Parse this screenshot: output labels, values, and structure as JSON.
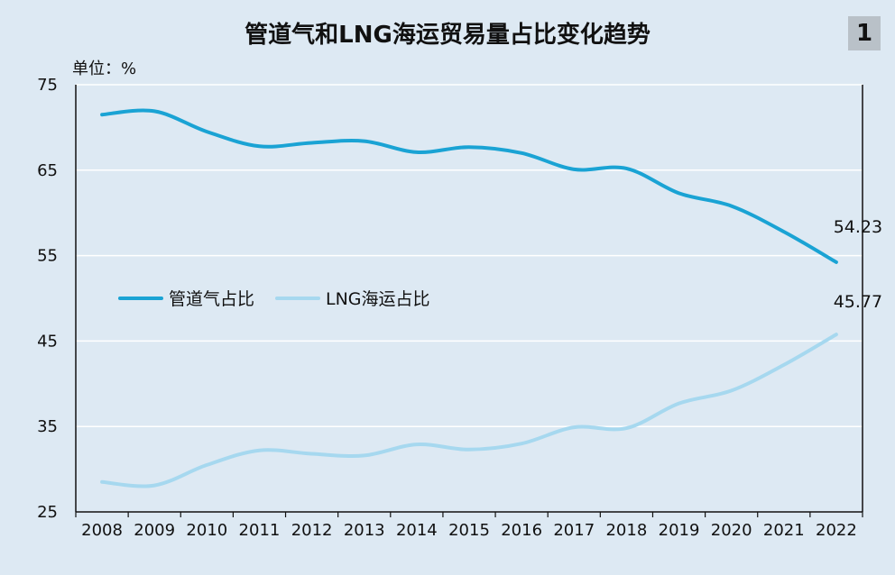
{
  "figure_number": "1",
  "chart_data": {
    "type": "line",
    "title": "管道气和LNG海运贸易量占比变化趋势",
    "unit_label": "单位：%",
    "xlabel": "",
    "ylabel": "",
    "categories": [
      "2008",
      "2009",
      "2010",
      "2011",
      "2012",
      "2013",
      "2014",
      "2015",
      "2016",
      "2017",
      "2018",
      "2019",
      "2020",
      "2021",
      "2022"
    ],
    "ylim": [
      25,
      75
    ],
    "yticks": [
      25,
      35,
      45,
      55,
      65,
      75
    ],
    "grid": true,
    "legend_position": "middle-left",
    "series": [
      {
        "name": "管道气占比",
        "color": "#1aa3d4",
        "values": [
          71.5,
          71.9,
          69.5,
          67.8,
          68.2,
          68.4,
          67.1,
          67.7,
          67.0,
          65.1,
          65.2,
          62.3,
          60.8,
          57.8,
          54.23
        ],
        "end_label": "54.23"
      },
      {
        "name": "LNG海运占比",
        "color": "#a6d8ef",
        "values": [
          28.5,
          28.1,
          30.5,
          32.2,
          31.8,
          31.6,
          32.9,
          32.3,
          33.0,
          34.9,
          34.8,
          37.7,
          39.2,
          42.2,
          45.77
        ],
        "end_label": "45.77"
      }
    ]
  }
}
